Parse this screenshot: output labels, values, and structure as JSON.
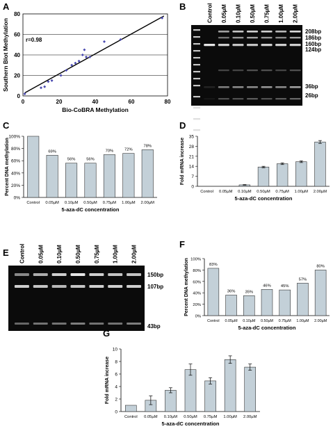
{
  "panels": {
    "A": "A",
    "B": "B",
    "C": "C",
    "D": "D",
    "E": "E",
    "F": "F",
    "G": "G"
  },
  "colors": {
    "bar_fill": "#c3d0d8",
    "bar_stroke": "#333333",
    "point": "#4a4ab0",
    "gel_bg": "#0b0b0b"
  },
  "chart_data": [
    {
      "id": "A",
      "type": "scatter",
      "xlabel": "Bio-CoBRA Methylation",
      "ylabel": "Southern Blot Methylation",
      "xlim": [
        0,
        80
      ],
      "ylim": [
        0,
        80
      ],
      "xticks": [
        0,
        20,
        40,
        60,
        80
      ],
      "yticks": [
        0,
        20,
        40,
        60,
        80
      ],
      "grid": "horizontal",
      "annotation": "r=0.98",
      "points": [
        [
          1,
          2
        ],
        [
          10,
          8
        ],
        [
          12,
          9
        ],
        [
          14,
          14
        ],
        [
          16,
          15
        ],
        [
          21,
          20
        ],
        [
          24,
          25
        ],
        [
          27,
          30
        ],
        [
          29,
          32
        ],
        [
          31,
          34
        ],
        [
          33,
          40
        ],
        [
          34,
          45
        ],
        [
          35,
          38
        ],
        [
          37,
          38
        ],
        [
          45,
          53
        ],
        [
          54,
          55
        ],
        [
          77,
          76
        ]
      ],
      "fit": [
        [
          1,
          3
        ],
        [
          78,
          78
        ]
      ]
    },
    {
      "id": "B",
      "type": "gel",
      "lanes": [
        "Control",
        "0.05µM",
        "0.10µM",
        "0.50µM",
        "0.75µM",
        "1.00µM",
        "2.00µM"
      ],
      "band_labels": [
        "208bp",
        "186bp",
        "160bp",
        "124bp",
        "36bp",
        "26bp"
      ]
    },
    {
      "id": "C",
      "type": "bar",
      "xlabel": "5-aza-dC concentration",
      "ylabel": "Percent DNA methylation",
      "categories": [
        "Control",
        "0.05µM",
        "0.10µM",
        "0.50µM",
        "0.75µM",
        "1.00µM",
        "2.00µM"
      ],
      "values": [
        100,
        69,
        56,
        56,
        70,
        72,
        78
      ],
      "value_labels": [
        "",
        "69%",
        "56%",
        "56%",
        "70%",
        "72%",
        "78%"
      ],
      "ylim": [
        0,
        100
      ],
      "yticks": [
        "0%",
        "20%",
        "40%",
        "60%",
        "80%",
        "100%"
      ]
    },
    {
      "id": "D",
      "type": "bar",
      "xlabel": "5-aza-dC concentration",
      "ylabel": "Fold mRNA increase",
      "categories": [
        "Control",
        "0.05µM",
        "0.10µM",
        "0.50µM",
        "0.75µM",
        "1.00µM",
        "2.00µM"
      ],
      "values": [
        0,
        0,
        1,
        13.5,
        15.8,
        17.2,
        31
      ],
      "errors": [
        0,
        0,
        0.2,
        0.5,
        0.6,
        0.6,
        1
      ],
      "ylim": [
        0,
        35
      ],
      "yticks": [
        "0",
        "7",
        "14",
        "21",
        "28",
        "35"
      ]
    },
    {
      "id": "E",
      "type": "gel",
      "lanes": [
        "Control",
        "0.05µM",
        "0.10µM",
        "0.50µM",
        "0.75µM",
        "1.00µM",
        "2.00µM"
      ],
      "band_labels": [
        "150bp",
        "107bp",
        "43bp"
      ]
    },
    {
      "id": "F",
      "type": "bar",
      "xlabel": "5-aza-dC concentration",
      "ylabel": "Percent DNA methylation",
      "categories": [
        "Control",
        "0.05µM",
        "0.10µM",
        "0.50µM",
        "0.75µM",
        "1.00µM",
        "2.00µM"
      ],
      "values": [
        83,
        36,
        35,
        46,
        45,
        57,
        80
      ],
      "value_labels": [
        "83%",
        "36%",
        "35%",
        "46%",
        "45%",
        "57%",
        "80%"
      ],
      "ylim": [
        0,
        100
      ],
      "yticks": [
        "0%",
        "20%",
        "40%",
        "60%",
        "80%",
        "100%"
      ]
    },
    {
      "id": "G",
      "type": "bar",
      "xlabel": "5-aza-dC concentration",
      "ylabel": "Fold mRNA increase",
      "categories": [
        "Control",
        "0.05µM",
        "0.10µM",
        "0.50µM",
        "0.75µM",
        "1.00µM",
        "2.00µM"
      ],
      "values": [
        1.0,
        1.8,
        3.4,
        6.7,
        4.9,
        8.3,
        7.1
      ],
      "errors": [
        0,
        0.7,
        0.4,
        0.9,
        0.5,
        0.6,
        0.5
      ],
      "ylim": [
        0,
        10
      ],
      "yticks": [
        "0",
        "2",
        "4",
        "6",
        "8",
        "10"
      ]
    }
  ]
}
